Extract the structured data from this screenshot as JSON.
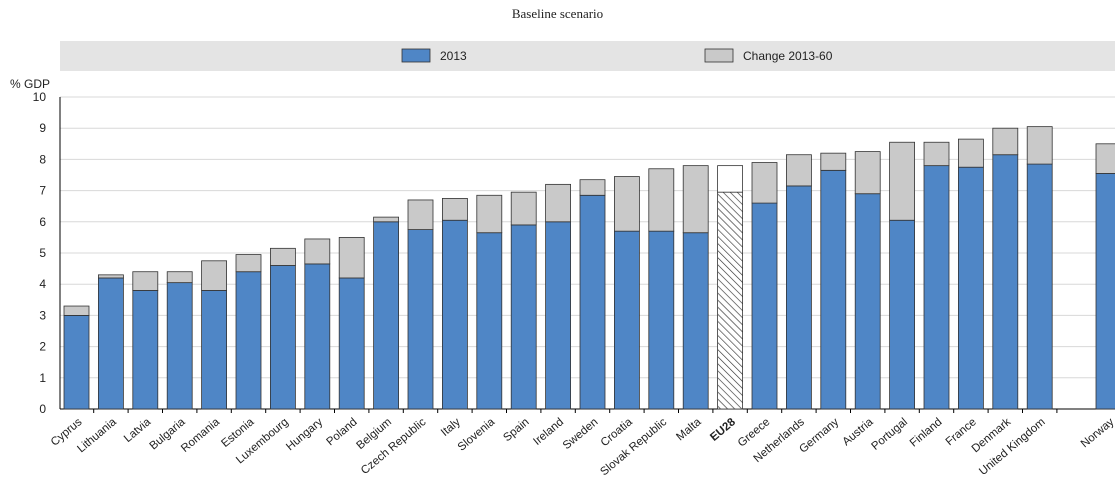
{
  "chart_data": {
    "type": "bar",
    "stacked": true,
    "title": "Baseline scenario",
    "ylabel": "% GDP",
    "ylim": [
      0,
      10
    ],
    "yticks": [
      0,
      1,
      2,
      3,
      4,
      5,
      6,
      7,
      8,
      9,
      10
    ],
    "grid": true,
    "legend_position": "top",
    "categories": [
      "Cyprus",
      "Lithuania",
      "Latvia",
      "Bulgaria",
      "Romania",
      "Estonia",
      "Luxembourg",
      "Hungary",
      "Poland",
      "Belgium",
      "Czech Republic",
      "Italy",
      "Slovenia",
      "Spain",
      "Ireland",
      "Sweden",
      "Croatia",
      "Slovak Republic",
      "Malta",
      "EU28",
      "Greece",
      "Netherlands",
      "Germany",
      "Austria",
      "Portugal",
      "Finland",
      "France",
      "Denmark",
      "United Kingdom",
      "",
      "Norway"
    ],
    "highlight_category": "EU28",
    "series": [
      {
        "name": "2013",
        "color": "#4f86c6",
        "values": [
          3.0,
          4.2,
          3.8,
          4.05,
          3.8,
          4.4,
          4.6,
          4.65,
          4.2,
          6.0,
          5.75,
          6.05,
          5.65,
          5.9,
          6.0,
          6.85,
          5.7,
          5.7,
          5.65,
          6.95,
          6.6,
          7.15,
          7.65,
          6.9,
          6.05,
          7.8,
          7.75,
          8.15,
          7.85,
          null,
          7.55
        ]
      },
      {
        "name": "Change 2013-60",
        "color": "#c9c9c9",
        "values": [
          0.3,
          0.1,
          0.6,
          0.35,
          0.95,
          0.55,
          0.55,
          0.8,
          1.3,
          0.15,
          0.95,
          0.7,
          1.2,
          1.05,
          1.2,
          0.5,
          1.75,
          2.0,
          2.15,
          0.85,
          1.3,
          1.0,
          0.55,
          1.35,
          2.5,
          0.75,
          0.9,
          0.85,
          1.2,
          null,
          0.95
        ]
      }
    ]
  }
}
